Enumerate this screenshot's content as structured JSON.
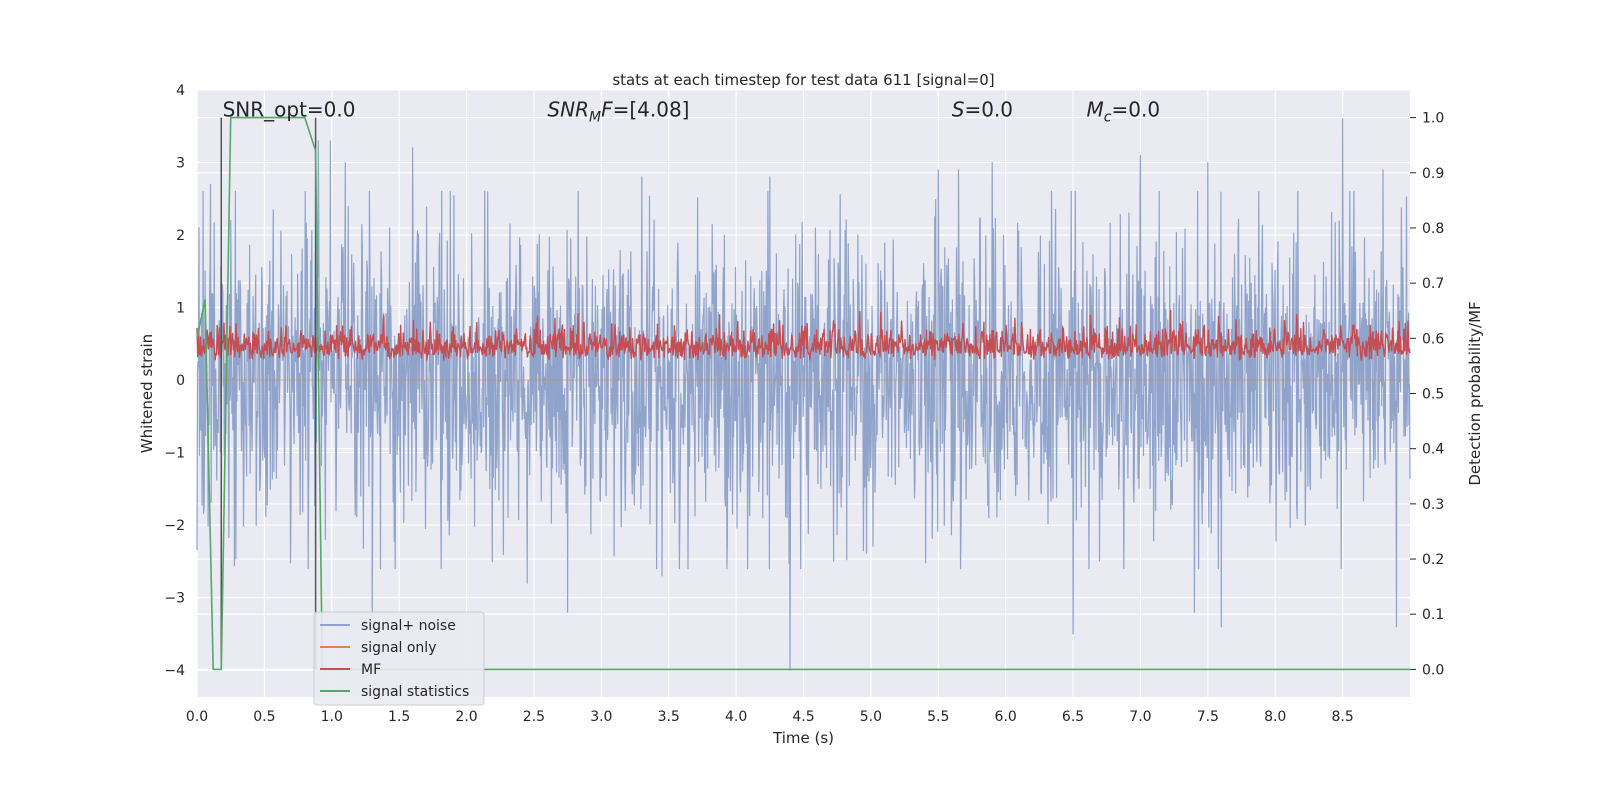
{
  "chart_data": {
    "type": "line",
    "title": "stats at each timestep for test data 611 [signal=0]",
    "xlabel": "Time (s)",
    "ylabel": "Whitened strain",
    "ylabel_right": "Detection probability/MF",
    "xlim": [
      0.0,
      9.0
    ],
    "ylim": [
      -4.37,
      4.0
    ],
    "ylim_right": [
      -0.05,
      1.05
    ],
    "xticks": [
      0.0,
      0.5,
      1.0,
      1.5,
      2.0,
      2.5,
      3.0,
      3.5,
      4.0,
      4.5,
      5.0,
      5.5,
      6.0,
      6.5,
      7.0,
      7.5,
      8.0,
      8.5
    ],
    "xtick_labels": [
      "0.0",
      "0.5",
      "1.0",
      "1.5",
      "2.0",
      "2.5",
      "3.0",
      "3.5",
      "4.0",
      "4.5",
      "5.0",
      "5.5",
      "6.0",
      "6.5",
      "7.0",
      "7.5",
      "8.0",
      "8.5"
    ],
    "yticks": [
      -4,
      -3,
      -2,
      -1,
      0,
      1,
      2,
      3,
      4
    ],
    "ytick_labels": [
      "−4",
      "−3",
      "−2",
      "−1",
      "0",
      "1",
      "2",
      "3",
      "4"
    ],
    "yticks_right": [
      0.0,
      0.1,
      0.2,
      0.3,
      0.4,
      0.5,
      0.6,
      0.7,
      0.8,
      0.9,
      1.0
    ],
    "ytick_labels_right": [
      "0.0",
      "0.1",
      "0.2",
      "0.3",
      "0.4",
      "0.5",
      "0.6",
      "0.7",
      "0.8",
      "0.9",
      "1.0"
    ],
    "grid": true,
    "legend_position": "lower-left",
    "annotations": [
      {
        "text": "SNR_opt=0.0",
        "x": 0.19,
        "y": 3.72
      },
      {
        "text": "SNR_MF=[4.08]",
        "x": 2.6,
        "y": 3.72,
        "math": true,
        "base": "SNR",
        "sub": "M",
        "rest": "F=[4.08]"
      },
      {
        "text": "S=0.0",
        "x": 5.6,
        "y": 3.72,
        "math": true,
        "base": "S",
        "sub": "",
        "rest": "=0.0"
      },
      {
        "text": "M_c=0.0",
        "x": 6.6,
        "y": 3.72,
        "math": true,
        "base": "M",
        "sub": "c",
        "rest": "=0.0"
      }
    ],
    "series": [
      {
        "name": "signal+ noise",
        "color": "#8fa3cb",
        "axis": "left",
        "description": "noise with amplitude envelope roughly ±2, spikes reaching about 3.6 and -4.0",
        "peaks": [
          [
            0.1,
            2.7
          ],
          [
            0.25,
            2.2
          ],
          [
            0.9,
            3.3
          ],
          [
            0.99,
            3.3
          ],
          [
            1.1,
            3.0
          ],
          [
            1.3,
            -3.3
          ],
          [
            1.6,
            3.2
          ],
          [
            2.45,
            -2.8
          ],
          [
            2.75,
            -3.2
          ],
          [
            3.3,
            2.8
          ],
          [
            3.45,
            -2.7
          ],
          [
            4.25,
            2.8
          ],
          [
            4.4,
            -4.0
          ],
          [
            5.5,
            2.9
          ],
          [
            5.65,
            2.9
          ],
          [
            5.9,
            3.0
          ],
          [
            6.5,
            -3.5
          ],
          [
            7.0,
            3.1
          ],
          [
            7.4,
            -3.2
          ],
          [
            7.5,
            3.0
          ],
          [
            7.6,
            -3.4
          ],
          [
            8.5,
            3.6
          ],
          [
            8.8,
            2.9
          ],
          [
            8.9,
            -3.4
          ]
        ]
      },
      {
        "name": "signal only",
        "color": "#dd8452",
        "axis": "left",
        "values_constant": 0.0
      },
      {
        "name": "MF",
        "color": "#c44e52",
        "axis": "right",
        "description": "matched filter output fluctuating between about 0.52 and 0.66 on the right axis",
        "range": [
          0.52,
          0.66
        ]
      },
      {
        "name": "signal statistics",
        "color": "#55a868",
        "axis": "right",
        "x": [
          0.0,
          0.06,
          0.12,
          0.18,
          0.25,
          0.32,
          0.4,
          0.5,
          0.6,
          0.7,
          0.8,
          0.88,
          0.93,
          0.98,
          9.0
        ],
        "y": [
          0.6,
          0.67,
          0.0,
          0.0,
          1.0,
          1.0,
          1.0,
          1.0,
          1.0,
          1.0,
          1.0,
          0.94,
          0.0,
          0.0,
          0.0
        ]
      }
    ],
    "vertical_lines": [
      {
        "x": 0.18,
        "color": "#555555",
        "y_right": [
          0.0,
          1.0
        ]
      },
      {
        "x": 0.88,
        "color": "#555555",
        "y_right": [
          0.0,
          1.0
        ]
      }
    ]
  }
}
